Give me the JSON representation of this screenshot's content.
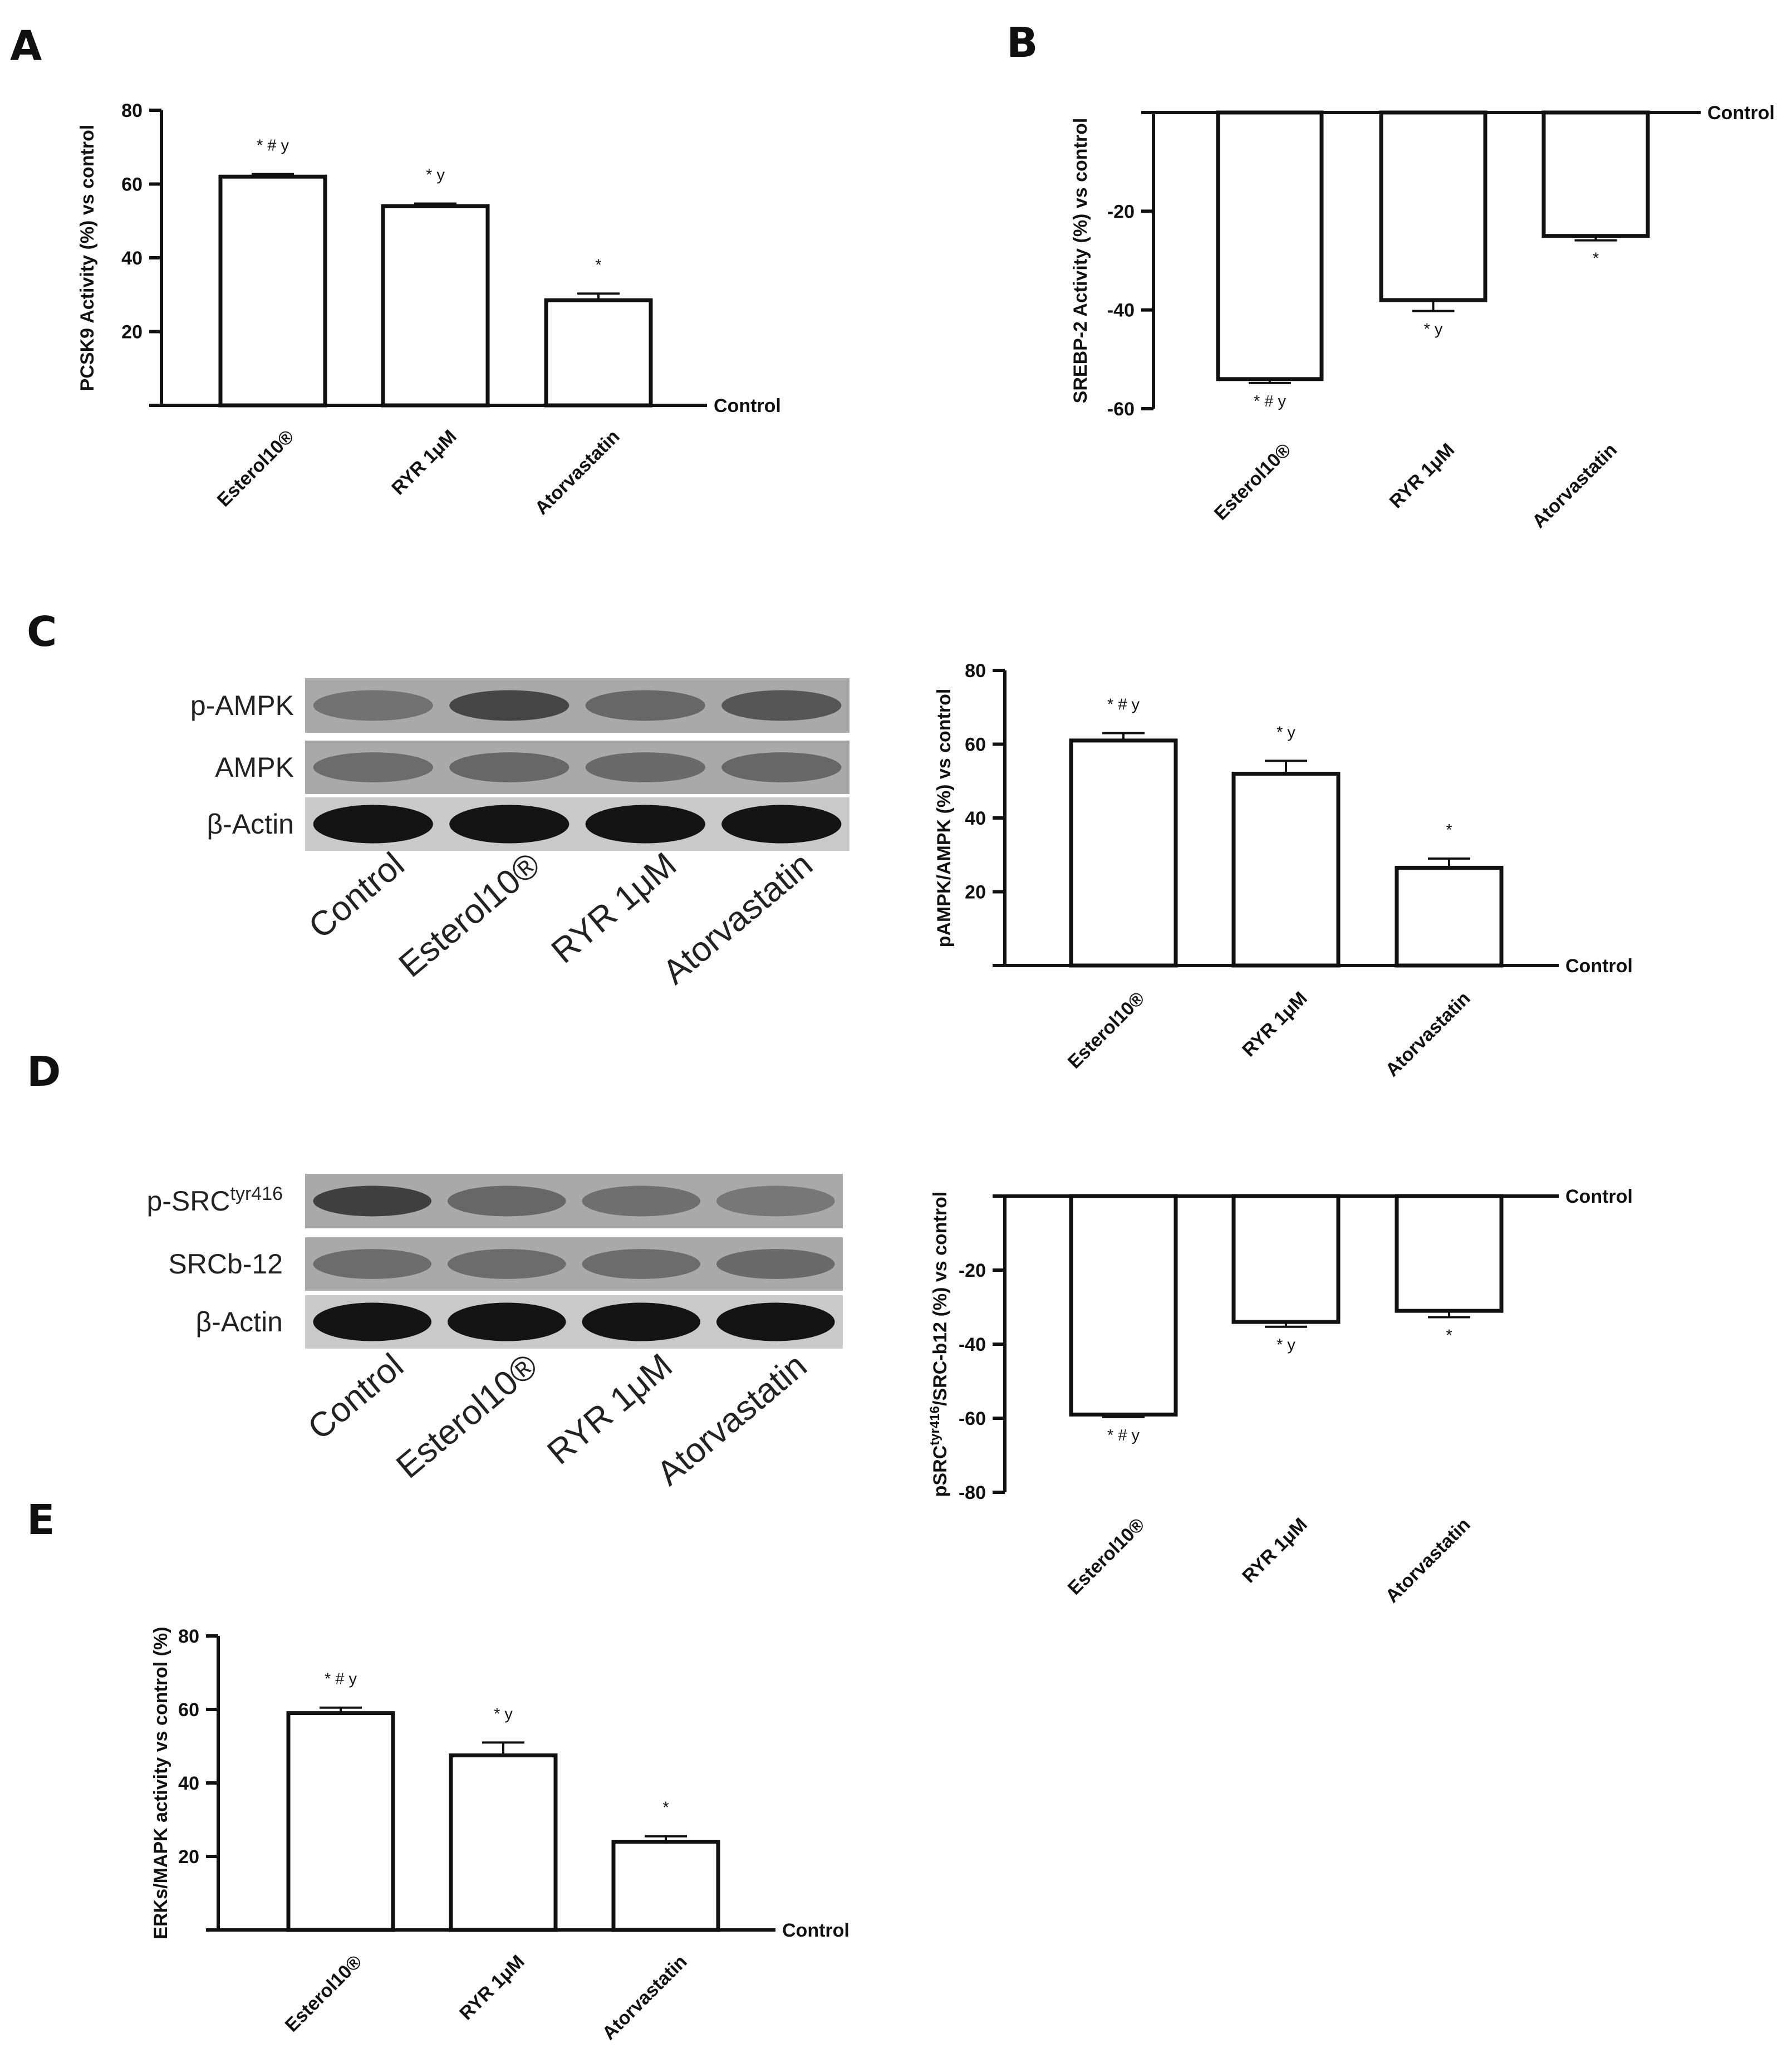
{
  "panels": {
    "A": {
      "letter": "A"
    },
    "B": {
      "letter": "B"
    },
    "C": {
      "letter": "C"
    },
    "D": {
      "letter": "D"
    },
    "E": {
      "letter": "E"
    }
  },
  "control_label": "Control",
  "blots": {
    "C": {
      "rows": [
        {
          "key": "pampk",
          "label": "p-AMPK",
          "intensity": [
            0.35,
            0.75,
            0.45,
            0.6
          ]
        },
        {
          "key": "ampk",
          "label": "AMPK",
          "intensity": [
            0.4,
            0.45,
            0.42,
            0.45
          ]
        },
        {
          "key": "actin",
          "label": "β-Actin",
          "intensity": [
            1,
            1,
            1,
            1
          ]
        }
      ],
      "lanes": [
        "Control",
        "Esterol10®",
        "RYR 1μM",
        "Atorvastatin"
      ]
    },
    "D": {
      "rows": [
        {
          "key": "psrc",
          "label": "p-SRC",
          "label_sup": "tyr416",
          "intensity": [
            0.8,
            0.45,
            0.38,
            0.3
          ]
        },
        {
          "key": "srcb12",
          "label": "SRCb-12",
          "intensity": [
            0.4,
            0.4,
            0.4,
            0.42
          ]
        },
        {
          "key": "actin",
          "label": "β-Actin",
          "intensity": [
            1,
            1,
            1,
            1
          ]
        }
      ],
      "lanes": [
        "Control",
        "Esterol10®",
        "RYR 1μM",
        "Atorvastatin"
      ]
    }
  },
  "chart_data": [
    {
      "id": "A",
      "type": "bar",
      "categories": [
        "Esterol10®",
        "RYR 1μM",
        "Atorvastatin"
      ],
      "values": [
        62,
        54,
        28.5
      ],
      "errors": [
        0.7,
        0.7,
        1.8
      ],
      "significance": [
        "* # y",
        "* y",
        "*"
      ],
      "ylabel": "PCSK9 Activity (%) vs control",
      "ylim": [
        0,
        80
      ],
      "yticks": [
        20,
        40,
        60,
        80
      ],
      "baseline_label": "Control"
    },
    {
      "id": "B",
      "type": "bar",
      "categories": [
        "Esterol10®",
        "RYR 1μM",
        "Atorvastatin"
      ],
      "values": [
        -54,
        -38,
        -25
      ],
      "errors": [
        0.8,
        2.2,
        0.9
      ],
      "significance": [
        "* # y",
        "* y",
        "*"
      ],
      "ylabel": "SREBP-2 Activity (%) vs control",
      "ylim": [
        -60,
        0
      ],
      "yticks": [
        -20,
        -40,
        -60
      ],
      "baseline_label": "Control"
    },
    {
      "id": "C",
      "type": "bar",
      "categories": [
        "Esterol10®",
        "RYR 1μM",
        "Atorvastatin"
      ],
      "values": [
        61,
        52,
        26.5
      ],
      "errors": [
        2,
        3.5,
        2.5
      ],
      "significance": [
        "* # y",
        "* y",
        "*"
      ],
      "ylabel": "pAMPK/AMPK (%) vs control",
      "ylim": [
        0,
        80
      ],
      "yticks": [
        20,
        40,
        60,
        80
      ],
      "baseline_label": "Control"
    },
    {
      "id": "D",
      "type": "bar",
      "categories": [
        "Esterol10®",
        "RYR 1μM",
        "Atorvastatin"
      ],
      "values": [
        -59,
        -34,
        -31
      ],
      "errors": [
        0.7,
        1.3,
        1.7
      ],
      "significance": [
        "* # y",
        "* y",
        "*"
      ],
      "ylabel": "pSRC",
      "ylabel_sup": "tyr416",
      "ylabel_rest": "/SRC-b12 (%) vs control",
      "ylim": [
        -80,
        0
      ],
      "yticks": [
        -20,
        -40,
        -60,
        -80
      ],
      "baseline_label": "Control"
    },
    {
      "id": "E",
      "type": "bar",
      "categories": [
        "Esterol10®",
        "RYR 1μM",
        "Atorvastatin"
      ],
      "values": [
        59,
        47.5,
        24
      ],
      "errors": [
        1.5,
        3.5,
        1.5
      ],
      "significance": [
        "* # y",
        "* y",
        "*"
      ],
      "ylabel": "ERKs/MAPK activity vs control (%)",
      "ylim": [
        0,
        80
      ],
      "yticks": [
        20,
        40,
        60,
        80
      ],
      "baseline_label": "Control"
    }
  ]
}
